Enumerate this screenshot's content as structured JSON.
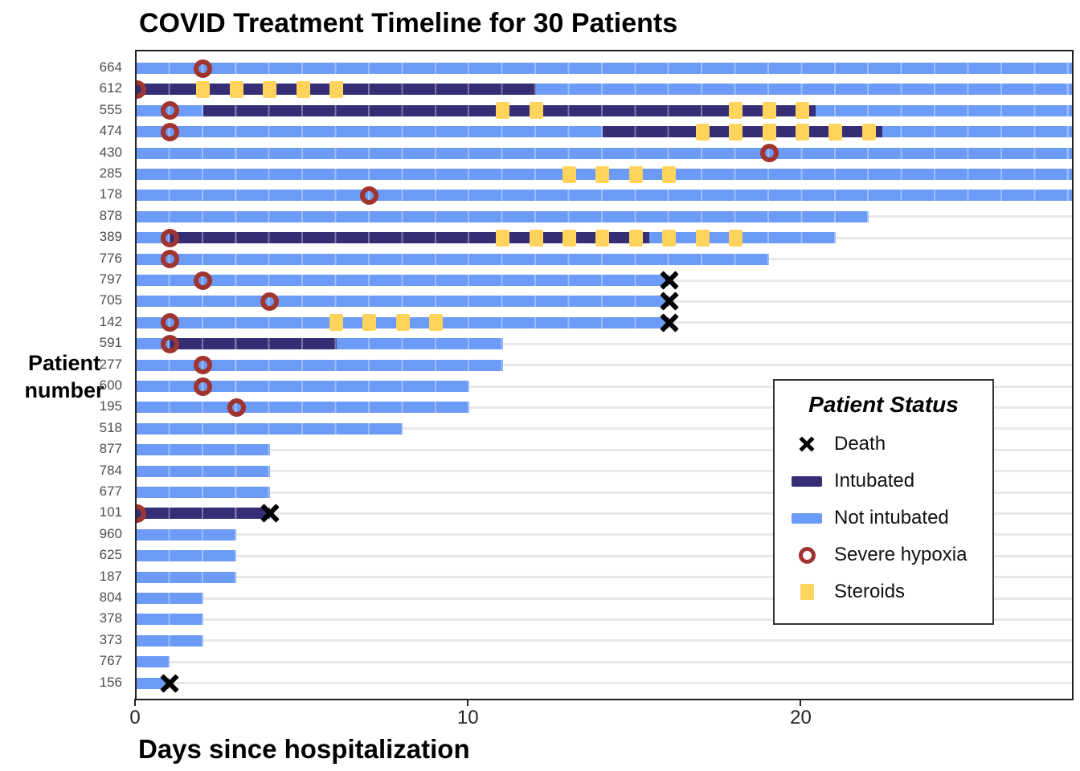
{
  "chart_data": {
    "type": "bar",
    "subtype": "horizontal-timeline-gantt",
    "title": "COVID Treatment Timeline for 30 Patients",
    "xlabel": "Days since hospitalization",
    "ylabel": "Patient number",
    "xlim": [
      0,
      28.1
    ],
    "xticks": [
      0,
      10,
      20
    ],
    "xtick_labels": [
      "0",
      "10",
      "20"
    ],
    "grid": "horizontal-gray-lines-per-row",
    "legend": {
      "title": "Patient Status",
      "position": "inside-right",
      "items": [
        {
          "key": "death",
          "label": "Death"
        },
        {
          "key": "intubated",
          "label": "Intubated"
        },
        {
          "key": "not_intubated",
          "label": "Not intubated"
        },
        {
          "key": "hypoxia",
          "label": "Severe hypoxia"
        },
        {
          "key": "steroids",
          "label": "Steroids"
        }
      ]
    },
    "colors": {
      "not_intubated": "#6B9AF7",
      "intubated": "#352E75",
      "steroids": "#FFD35C",
      "severe_hypoxia": "#A0342F",
      "death": "#000000",
      "gridline": "#E8E8E8"
    },
    "patients": [
      {
        "id": "664",
        "segments": [
          {
            "status": "not_intubated",
            "from": 0,
            "to": 28.1
          }
        ],
        "hypoxia": [
          2
        ],
        "steroids": [],
        "death": null
      },
      {
        "id": "612",
        "segments": [
          {
            "status": "intubated",
            "from": 0,
            "to": 12
          },
          {
            "status": "not_intubated",
            "from": 12,
            "to": 28.1
          }
        ],
        "hypoxia": [
          0
        ],
        "steroids": [
          2,
          3,
          4,
          5,
          6
        ],
        "death": null
      },
      {
        "id": "555",
        "segments": [
          {
            "status": "not_intubated",
            "from": 0,
            "to": 2
          },
          {
            "status": "intubated",
            "from": 2,
            "to": 20.4
          },
          {
            "status": "not_intubated",
            "from": 20.4,
            "to": 28.1
          }
        ],
        "hypoxia": [
          1
        ],
        "steroids": [
          11,
          12,
          18,
          19,
          20
        ],
        "death": null
      },
      {
        "id": "474",
        "segments": [
          {
            "status": "not_intubated",
            "from": 0,
            "to": 14
          },
          {
            "status": "intubated",
            "from": 14,
            "to": 22.4
          },
          {
            "status": "not_intubated",
            "from": 22.4,
            "to": 28.1
          }
        ],
        "hypoxia": [
          1
        ],
        "steroids": [
          17,
          18,
          19,
          20,
          21,
          22
        ],
        "death": null
      },
      {
        "id": "430",
        "segments": [
          {
            "status": "not_intubated",
            "from": 0,
            "to": 28.1
          }
        ],
        "hypoxia": [
          19
        ],
        "steroids": [],
        "death": null
      },
      {
        "id": "285",
        "segments": [
          {
            "status": "not_intubated",
            "from": 0,
            "to": 28.1
          }
        ],
        "hypoxia": [],
        "steroids": [
          13,
          14,
          15,
          16
        ],
        "death": null
      },
      {
        "id": "178",
        "segments": [
          {
            "status": "not_intubated",
            "from": 0,
            "to": 28.1
          }
        ],
        "hypoxia": [
          7
        ],
        "steroids": [],
        "death": null
      },
      {
        "id": "878",
        "segments": [
          {
            "status": "not_intubated",
            "from": 0,
            "to": 22
          }
        ],
        "hypoxia": [],
        "steroids": [],
        "death": null
      },
      {
        "id": "389",
        "segments": [
          {
            "status": "not_intubated",
            "from": 0,
            "to": 1
          },
          {
            "status": "intubated",
            "from": 1,
            "to": 15.4
          },
          {
            "status": "not_intubated",
            "from": 15.4,
            "to": 21
          }
        ],
        "hypoxia": [
          1
        ],
        "steroids": [
          11,
          12,
          13,
          14,
          15,
          16,
          17,
          18
        ],
        "death": null
      },
      {
        "id": "776",
        "segments": [
          {
            "status": "not_intubated",
            "from": 0,
            "to": 19
          }
        ],
        "hypoxia": [
          1
        ],
        "steroids": [],
        "death": null
      },
      {
        "id": "797",
        "segments": [
          {
            "status": "not_intubated",
            "from": 0,
            "to": 16
          }
        ],
        "hypoxia": [
          2
        ],
        "steroids": [],
        "death": 16
      },
      {
        "id": "705",
        "segments": [
          {
            "status": "not_intubated",
            "from": 0,
            "to": 16
          }
        ],
        "hypoxia": [
          4
        ],
        "steroids": [],
        "death": 16
      },
      {
        "id": "142",
        "segments": [
          {
            "status": "not_intubated",
            "from": 0,
            "to": 16
          }
        ],
        "hypoxia": [
          1
        ],
        "steroids": [
          6,
          7,
          8,
          9
        ],
        "death": 16
      },
      {
        "id": "591",
        "segments": [
          {
            "status": "not_intubated",
            "from": 0,
            "to": 1
          },
          {
            "status": "intubated",
            "from": 1,
            "to": 6
          },
          {
            "status": "not_intubated",
            "from": 6,
            "to": 11
          }
        ],
        "hypoxia": [
          1
        ],
        "steroids": [],
        "death": null
      },
      {
        "id": "277",
        "segments": [
          {
            "status": "not_intubated",
            "from": 0,
            "to": 11
          }
        ],
        "hypoxia": [
          2
        ],
        "steroids": [],
        "death": null
      },
      {
        "id": "600",
        "segments": [
          {
            "status": "not_intubated",
            "from": 0,
            "to": 10
          }
        ],
        "hypoxia": [
          2
        ],
        "steroids": [],
        "death": null
      },
      {
        "id": "195",
        "segments": [
          {
            "status": "not_intubated",
            "from": 0,
            "to": 10
          }
        ],
        "hypoxia": [
          3
        ],
        "steroids": [],
        "death": null
      },
      {
        "id": "518",
        "segments": [
          {
            "status": "not_intubated",
            "from": 0,
            "to": 8
          }
        ],
        "hypoxia": [],
        "steroids": [],
        "death": null
      },
      {
        "id": "877",
        "segments": [
          {
            "status": "not_intubated",
            "from": 0,
            "to": 4
          }
        ],
        "hypoxia": [],
        "steroids": [],
        "death": null
      },
      {
        "id": "784",
        "segments": [
          {
            "status": "not_intubated",
            "from": 0,
            "to": 4
          }
        ],
        "hypoxia": [],
        "steroids": [],
        "death": null
      },
      {
        "id": "677",
        "segments": [
          {
            "status": "not_intubated",
            "from": 0,
            "to": 4
          }
        ],
        "hypoxia": [],
        "steroids": [],
        "death": null
      },
      {
        "id": "101",
        "segments": [
          {
            "status": "intubated",
            "from": 0,
            "to": 4
          }
        ],
        "hypoxia": [
          0
        ],
        "steroids": [],
        "death": 4
      },
      {
        "id": "960",
        "segments": [
          {
            "status": "not_intubated",
            "from": 0,
            "to": 3
          }
        ],
        "hypoxia": [],
        "steroids": [],
        "death": null
      },
      {
        "id": "625",
        "segments": [
          {
            "status": "not_intubated",
            "from": 0,
            "to": 3
          }
        ],
        "hypoxia": [],
        "steroids": [],
        "death": null
      },
      {
        "id": "187",
        "segments": [
          {
            "status": "not_intubated",
            "from": 0,
            "to": 3
          }
        ],
        "hypoxia": [],
        "steroids": [],
        "death": null
      },
      {
        "id": "804",
        "segments": [
          {
            "status": "not_intubated",
            "from": 0,
            "to": 2
          }
        ],
        "hypoxia": [],
        "steroids": [],
        "death": null
      },
      {
        "id": "378",
        "segments": [
          {
            "status": "not_intubated",
            "from": 0,
            "to": 2
          }
        ],
        "hypoxia": [],
        "steroids": [],
        "death": null
      },
      {
        "id": "373",
        "segments": [
          {
            "status": "not_intubated",
            "from": 0,
            "to": 2
          }
        ],
        "hypoxia": [],
        "steroids": [],
        "death": null
      },
      {
        "id": "767",
        "segments": [
          {
            "status": "not_intubated",
            "from": 0,
            "to": 1
          }
        ],
        "hypoxia": [],
        "steroids": [],
        "death": null
      },
      {
        "id": "156",
        "segments": [
          {
            "status": "not_intubated",
            "from": 0,
            "to": 1
          }
        ],
        "hypoxia": [],
        "steroids": [],
        "death": 1
      }
    ]
  }
}
